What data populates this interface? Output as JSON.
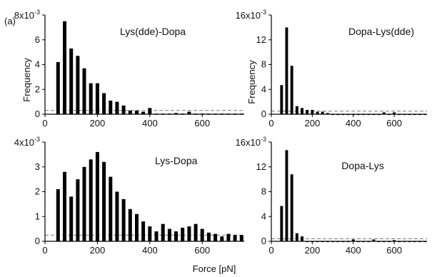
{
  "figure": {
    "label": "(a)"
  },
  "shared": {
    "xlabel": "Force [pN]",
    "ylabel": "Frequency"
  },
  "chart_data": [
    {
      "type": "bar",
      "title": "Lys(dde)-Dopa",
      "xlabel": "Force [pN]",
      "ylabel": "Frequency",
      "multiplier": {
        "mantissa": "8x10",
        "exponent": "-3"
      },
      "xlim": [
        0,
        760
      ],
      "ylim": [
        0,
        8
      ],
      "xticks": [
        0,
        200,
        400,
        600
      ],
      "yticks": [
        0,
        2,
        4,
        6
      ],
      "x": [
        50,
        75,
        100,
        125,
        150,
        175,
        200,
        225,
        250,
        275,
        300,
        325,
        350,
        375,
        400,
        425,
        450,
        475,
        500,
        525,
        550,
        575,
        600,
        625,
        650,
        675,
        700,
        725,
        750
      ],
      "values": [
        4.2,
        7.5,
        5.3,
        4.7,
        3.7,
        2.5,
        2.5,
        1.7,
        1.1,
        1.0,
        0.7,
        0.3,
        0.3,
        0.2,
        0.5,
        0.05,
        0.05,
        0.05,
        0.1,
        0.05,
        0.2,
        0.05,
        0.05,
        0.05,
        0.05,
        0.05,
        0.05,
        0.05,
        0.05
      ],
      "baseline": 0.3,
      "grid": false
    },
    {
      "type": "bar",
      "title": "Dopa-Lys(dde)",
      "xlabel": "Force [pN]",
      "ylabel": "Frequency",
      "multiplier": {
        "mantissa": "16x10",
        "exponent": "-3"
      },
      "xlim": [
        0,
        760
      ],
      "ylim": [
        0,
        16
      ],
      "xticks": [
        0,
        200,
        400,
        600
      ],
      "yticks": [
        0,
        4,
        8,
        12
      ],
      "x": [
        50,
        75,
        100,
        125,
        150,
        175,
        200,
        225,
        250,
        275,
        300,
        325,
        350,
        375,
        400,
        425,
        450,
        475,
        500,
        525,
        550,
        575,
        600,
        625,
        650,
        675,
        700,
        725,
        750
      ],
      "values": [
        4.7,
        14.0,
        7.8,
        1.3,
        1.0,
        0.7,
        0.7,
        0.4,
        0.4,
        0.2,
        0.05,
        0.05,
        0.05,
        0.05,
        0.05,
        0.05,
        0.05,
        0.05,
        0.05,
        0.05,
        0.3,
        0.05,
        0.3,
        0.05,
        0.05,
        0.05,
        0.05,
        0.05,
        0.05
      ],
      "baseline": 0.5,
      "grid": false
    },
    {
      "type": "bar",
      "title": "Lys-Dopa",
      "xlabel": "Force [pN]",
      "ylabel": "Frequency",
      "multiplier": {
        "mantissa": "4x10",
        "exponent": "-3"
      },
      "xlim": [
        0,
        760
      ],
      "ylim": [
        0,
        4
      ],
      "xticks": [
        0,
        200,
        400,
        600
      ],
      "yticks": [
        0,
        1,
        2,
        3
      ],
      "x": [
        50,
        75,
        100,
        125,
        150,
        175,
        200,
        225,
        250,
        275,
        300,
        325,
        350,
        375,
        400,
        425,
        450,
        475,
        500,
        525,
        550,
        575,
        600,
        625,
        650,
        675,
        700,
        725,
        750
      ],
      "values": [
        2.1,
        2.8,
        1.8,
        2.5,
        3.0,
        3.3,
        3.6,
        3.2,
        2.6,
        2.0,
        1.7,
        1.3,
        1.1,
        0.8,
        0.6,
        0.4,
        0.7,
        0.5,
        0.4,
        0.55,
        0.6,
        0.7,
        0.5,
        0.35,
        0.3,
        0.2,
        0.3,
        0.25,
        0.25
      ],
      "baseline": 0.25,
      "grid": false
    },
    {
      "type": "bar",
      "title": "Dopa-Lys",
      "xlabel": "Force [pN]",
      "ylabel": "Frequency",
      "multiplier": {
        "mantissa": "16x10",
        "exponent": "-3"
      },
      "xlim": [
        0,
        760
      ],
      "ylim": [
        0,
        16
      ],
      "xticks": [
        0,
        200,
        400,
        600
      ],
      "yticks": [
        0,
        4,
        8,
        12
      ],
      "x": [
        50,
        75,
        100,
        125,
        150,
        175,
        200,
        225,
        250,
        275,
        300,
        325,
        350,
        375,
        400,
        425,
        450,
        475,
        500,
        525,
        550,
        575,
        600,
        625,
        650,
        675,
        700,
        725,
        750
      ],
      "values": [
        5.7,
        14.7,
        10.8,
        1.3,
        0.8,
        0.05,
        0.05,
        0.05,
        0.05,
        0.05,
        0.05,
        0.05,
        0.05,
        0.05,
        0.3,
        0.05,
        0.05,
        0.05,
        0.3,
        0.05,
        0.05,
        0.05,
        0.2,
        0.05,
        0.05,
        0.05,
        0.05,
        0.05,
        0.05
      ],
      "baseline": 0.4,
      "grid": false
    }
  ]
}
